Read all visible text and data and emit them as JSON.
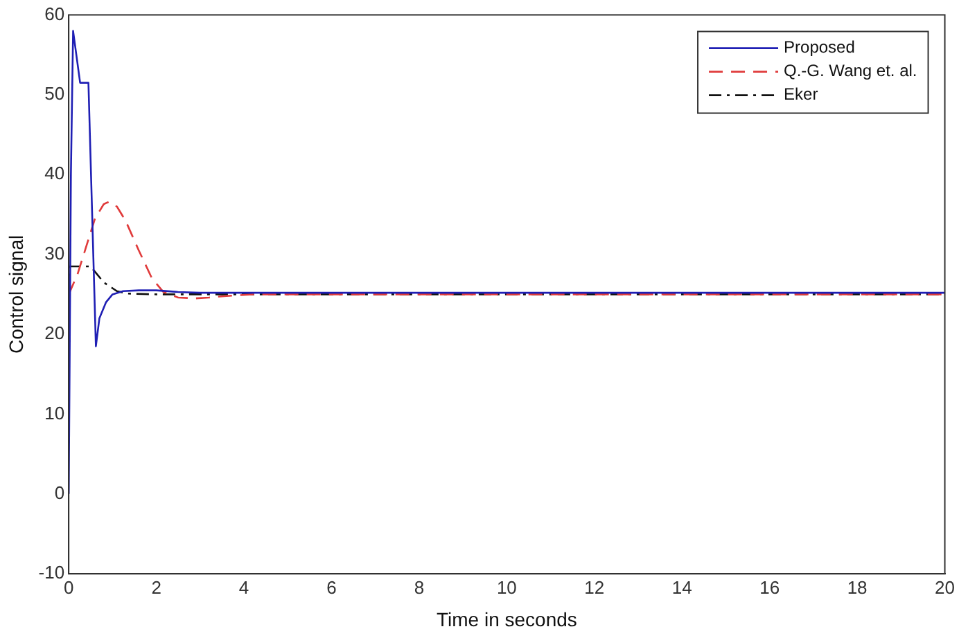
{
  "chart_data": {
    "type": "line",
    "xlabel": "Time in seconds",
    "ylabel": "Control signal",
    "xlim": [
      0,
      20
    ],
    "ylim": [
      -10,
      60
    ],
    "xticks": [
      0,
      2,
      4,
      6,
      8,
      10,
      12,
      14,
      16,
      18,
      20
    ],
    "yticks": [
      -10,
      0,
      10,
      20,
      30,
      40,
      50,
      60
    ],
    "grid": false,
    "legend": "top right",
    "series": [
      {
        "name": "Proposed",
        "color": "#1f1fb4",
        "line_style": "solid",
        "x": [
          0,
          0.05,
          0.1,
          0.26,
          0.45,
          0.62,
          0.7,
          0.85,
          1.0,
          1.24,
          1.6,
          2.0,
          2.5,
          3,
          4,
          6,
          10,
          15,
          20
        ],
        "values": [
          0,
          40,
          58,
          51.5,
          51.5,
          18.5,
          22,
          24,
          25,
          25.4,
          25.5,
          25.5,
          25.3,
          25.2,
          25.2,
          25.2,
          25.2,
          25.2,
          25.2
        ]
      },
      {
        "name": "Q.-G. Wang et. al.",
        "color": "#e03a3a",
        "line_style": "dashed",
        "x": [
          0,
          0.2,
          0.4,
          0.6,
          0.8,
          0.92,
          1.1,
          1.3,
          1.6,
          1.9,
          2.16,
          2.5,
          2.9,
          3.2,
          3.6,
          4.2,
          5,
          6,
          10,
          15,
          20
        ],
        "values": [
          25,
          27.5,
          31,
          34.5,
          36.3,
          36.6,
          36,
          34.2,
          30.5,
          27,
          25.3,
          24.6,
          24.5,
          24.6,
          24.8,
          25,
          25,
          25,
          25,
          25,
          25
        ]
      },
      {
        "name": "Eker",
        "color": "#111111",
        "line_style": "dashdot",
        "x": [
          0,
          0.02,
          0.5,
          0.8,
          1.1,
          1.35,
          2,
          3,
          5,
          10,
          15,
          20
        ],
        "values": [
          25,
          28.5,
          28.5,
          26.5,
          25.4,
          25.1,
          25,
          25,
          25,
          25,
          25,
          25
        ]
      }
    ]
  }
}
